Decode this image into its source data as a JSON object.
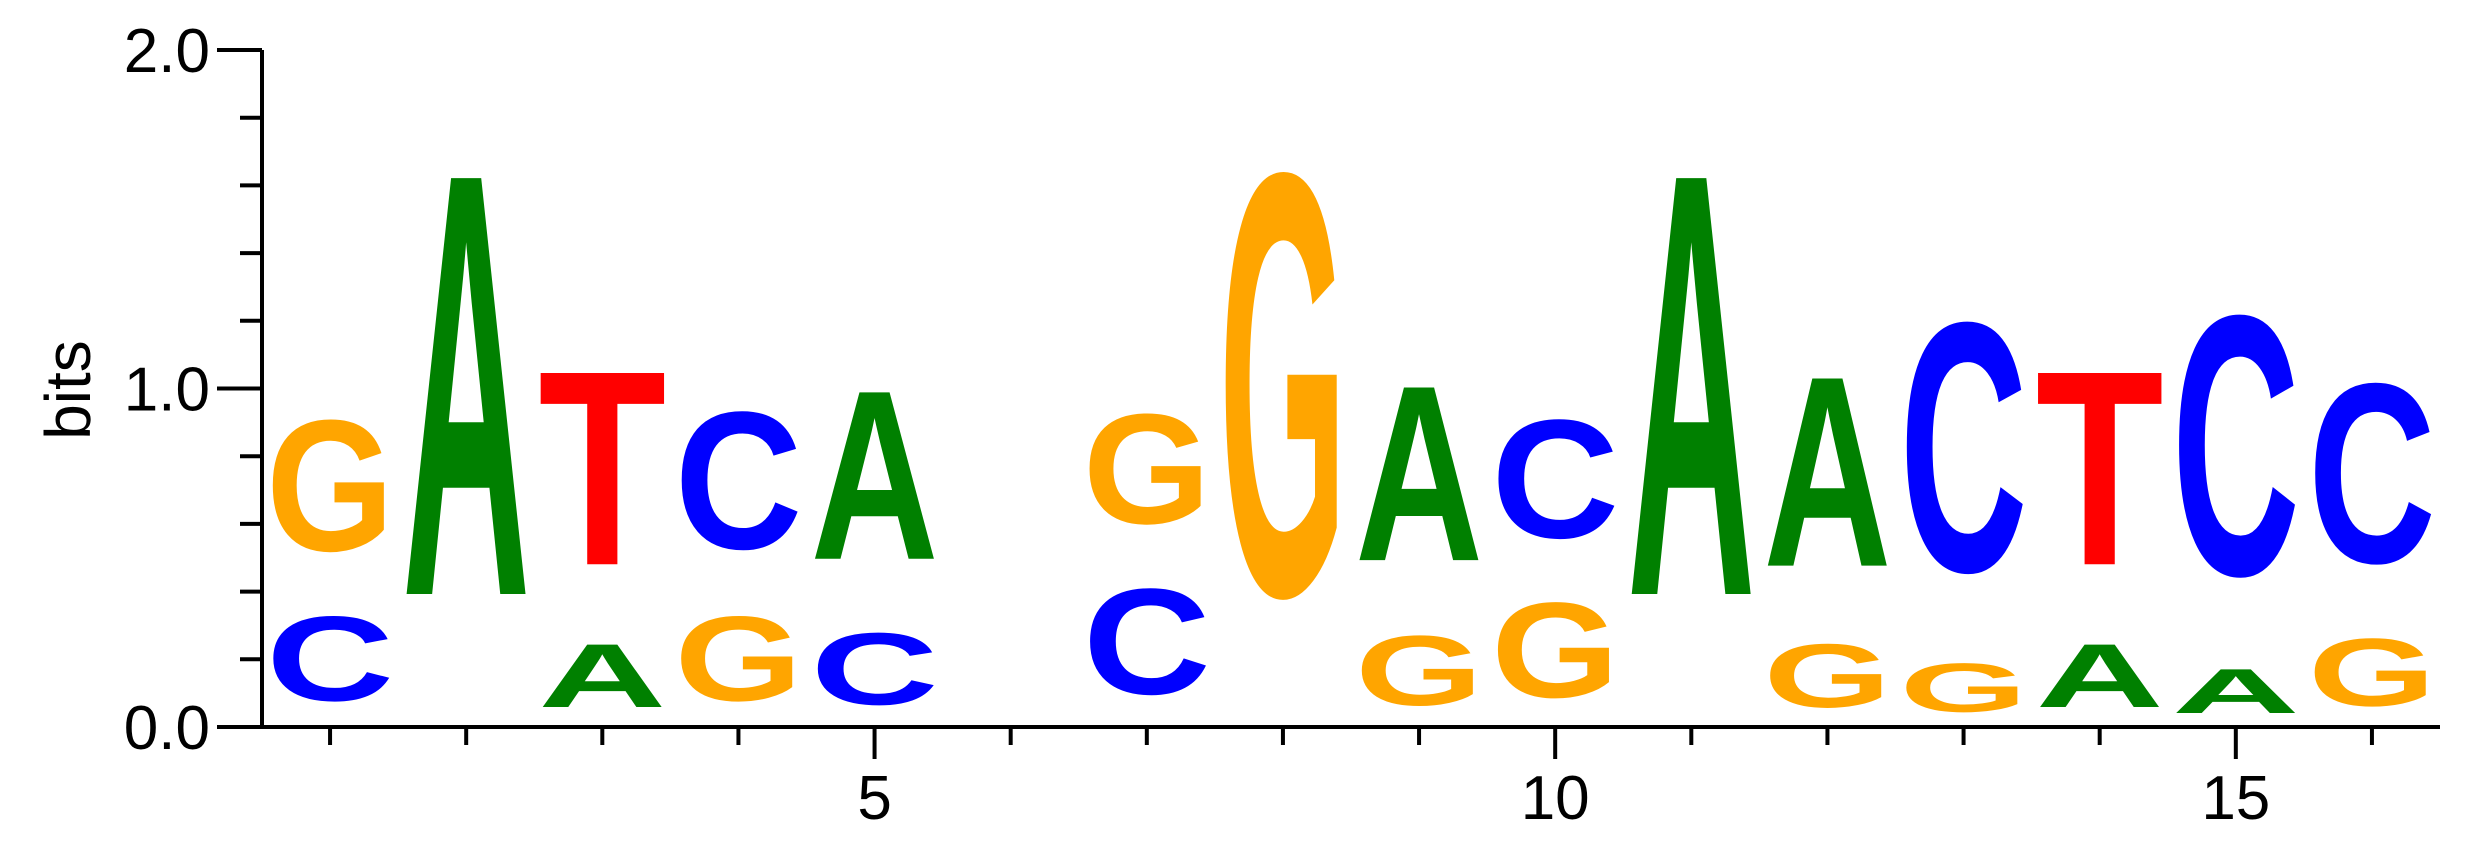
{
  "chart_data": {
    "type": "sequence-logo",
    "ylabel": "bits",
    "ylim": [
      0,
      2
    ],
    "yticks": [
      0.0,
      1.0,
      2.0
    ],
    "ytick_labels": [
      "0.0",
      "1.0",
      "2.0"
    ],
    "xlim": [
      0.5,
      16.5
    ],
    "xticks": [
      5,
      10,
      15
    ],
    "xtick_labels": [
      "5",
      "10",
      "15"
    ],
    "colors": {
      "A": "#008000",
      "C": "#0000FF",
      "G": "#FFA500",
      "T": "#FF0000"
    },
    "positions": [
      {
        "pos": 1,
        "stack": [
          {
            "letter": "C",
            "height": 0.4
          },
          {
            "letter": "G",
            "height": 0.62
          }
        ]
      },
      {
        "pos": 2,
        "stack": [
          {
            "letter": "A",
            "height": 2.0
          }
        ]
      },
      {
        "pos": 3,
        "stack": [
          {
            "letter": "A",
            "height": 0.3
          },
          {
            "letter": "T",
            "height": 0.92
          }
        ]
      },
      {
        "pos": 4,
        "stack": [
          {
            "letter": "G",
            "height": 0.4
          },
          {
            "letter": "C",
            "height": 0.65
          }
        ]
      },
      {
        "pos": 5,
        "stack": [
          {
            "letter": "C",
            "height": 0.34
          },
          {
            "letter": "A",
            "height": 0.8
          }
        ]
      },
      {
        "pos": 6,
        "stack": []
      },
      {
        "pos": 7,
        "stack": [
          {
            "letter": "C",
            "height": 0.5
          },
          {
            "letter": "G",
            "height": 0.52
          }
        ]
      },
      {
        "pos": 8,
        "stack": [
          {
            "letter": "G",
            "height": 2.0
          }
        ]
      },
      {
        "pos": 9,
        "stack": [
          {
            "letter": "G",
            "height": 0.33
          },
          {
            "letter": "A",
            "height": 0.83
          }
        ]
      },
      {
        "pos": 10,
        "stack": [
          {
            "letter": "G",
            "height": 0.45
          },
          {
            "letter": "C",
            "height": 0.56
          }
        ]
      },
      {
        "pos": 11,
        "stack": [
          {
            "letter": "A",
            "height": 2.0
          }
        ]
      },
      {
        "pos": 12,
        "stack": [
          {
            "letter": "G",
            "height": 0.3
          },
          {
            "letter": "A",
            "height": 0.9
          }
        ]
      },
      {
        "pos": 13,
        "stack": [
          {
            "letter": "G",
            "height": 0.23
          },
          {
            "letter": "C",
            "height": 1.18
          }
        ]
      },
      {
        "pos": 14,
        "stack": [
          {
            "letter": "A",
            "height": 0.3
          },
          {
            "letter": "T",
            "height": 0.92
          }
        ]
      },
      {
        "pos": 15,
        "stack": [
          {
            "letter": "A",
            "height": 0.21
          },
          {
            "letter": "C",
            "height": 1.23
          }
        ]
      },
      {
        "pos": 16,
        "stack": [
          {
            "letter": "G",
            "height": 0.32
          },
          {
            "letter": "C",
            "height": 0.85
          }
        ]
      }
    ]
  }
}
